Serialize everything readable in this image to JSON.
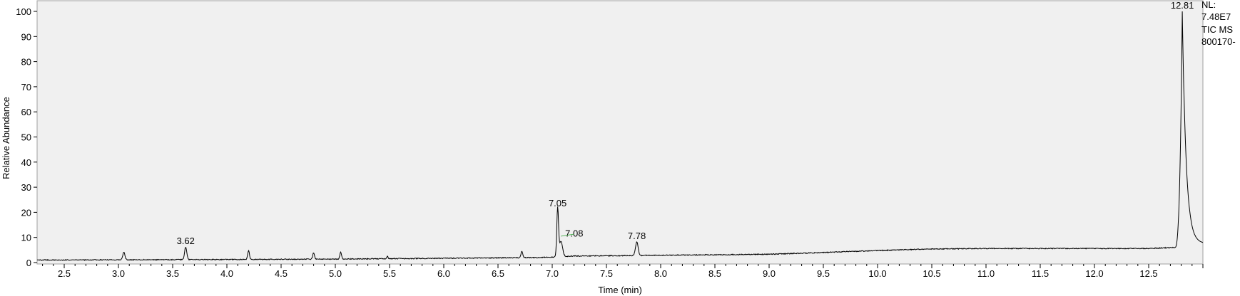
{
  "chart_data": {
    "type": "line",
    "xlabel": "Time (min)",
    "ylabel": "Relative Abundance",
    "xlim": [
      2.25,
      13.0
    ],
    "ylim": [
      0,
      100
    ],
    "x_ticks": [
      2.5,
      3.0,
      3.5,
      4.0,
      4.5,
      5.0,
      5.5,
      6.0,
      6.5,
      7.0,
      7.5,
      8.0,
      8.5,
      9.0,
      9.5,
      10.0,
      10.5,
      11.0,
      11.5,
      12.0,
      12.5
    ],
    "x_tick_labels": [
      "2.5",
      "3.0",
      "3.5",
      "4.0",
      "4.5",
      "5.0",
      "5.5",
      "6.0",
      "6.5",
      "7.0",
      "7.5",
      "8.0",
      "8.5",
      "9.0",
      "9.5",
      "10.0",
      "10.5",
      "11.0",
      "11.5",
      "12.0",
      "12.5"
    ],
    "y_ticks": [
      0,
      10,
      20,
      30,
      40,
      50,
      60,
      70,
      80,
      90,
      100
    ],
    "y_tick_labels": [
      "0",
      "10",
      "20",
      "30",
      "40",
      "50",
      "60",
      "70",
      "80",
      "90",
      "100"
    ],
    "grid": false,
    "info": [
      "NL:",
      "7.48E7",
      "TIC  MS",
      "800170-"
    ],
    "peak_labels": [
      {
        "text": "3.62",
        "x": 3.62,
        "y": 6
      },
      {
        "text": "7.05",
        "x": 7.05,
        "y": 21
      },
      {
        "text": "7.08",
        "x": 7.08,
        "y": 10
      },
      {
        "text": "7.78",
        "x": 7.78,
        "y": 8
      },
      {
        "text": "12.81",
        "x": 12.81,
        "y": 100
      }
    ],
    "series": [
      {
        "baseline": [
          [
            2.25,
            1.0
          ],
          [
            3.0,
            1.1
          ],
          [
            4.0,
            1.2
          ],
          [
            5.0,
            1.4
          ],
          [
            6.0,
            1.7
          ],
          [
            6.9,
            2.0
          ],
          [
            7.0,
            2.2
          ],
          [
            7.2,
            2.6
          ],
          [
            7.5,
            2.7
          ],
          [
            8.0,
            2.9
          ],
          [
            8.5,
            3.1
          ],
          [
            9.0,
            3.3
          ],
          [
            9.5,
            4.0
          ],
          [
            10.0,
            4.8
          ],
          [
            10.5,
            5.4
          ],
          [
            11.0,
            5.6
          ],
          [
            11.5,
            5.6
          ],
          [
            12.0,
            5.6
          ],
          [
            12.5,
            5.6
          ],
          [
            12.74,
            6.0
          ]
        ],
        "peaks": [
          {
            "x": 3.05,
            "height": 3.0,
            "width": 0.01
          },
          {
            "x": 3.62,
            "height": 5.0,
            "width": 0.01
          },
          {
            "x": 4.2,
            "height": 3.5,
            "width": 0.008
          },
          {
            "x": 4.8,
            "height": 2.5,
            "width": 0.008
          },
          {
            "x": 5.05,
            "height": 2.7,
            "width": 0.008
          },
          {
            "x": 5.48,
            "height": 1.0,
            "width": 0.006
          },
          {
            "x": 6.72,
            "height": 2.5,
            "width": 0.008
          },
          {
            "x": 7.05,
            "height": 19.0,
            "width": 0.008
          },
          {
            "x": 7.08,
            "height": 6.0,
            "width": 0.015
          },
          {
            "x": 7.78,
            "height": 5.5,
            "width": 0.012
          }
        ],
        "main_peak": {
          "x": 12.81,
          "y": 100,
          "tail_end": [
            13.0,
            8.0
          ]
        }
      }
    ]
  }
}
